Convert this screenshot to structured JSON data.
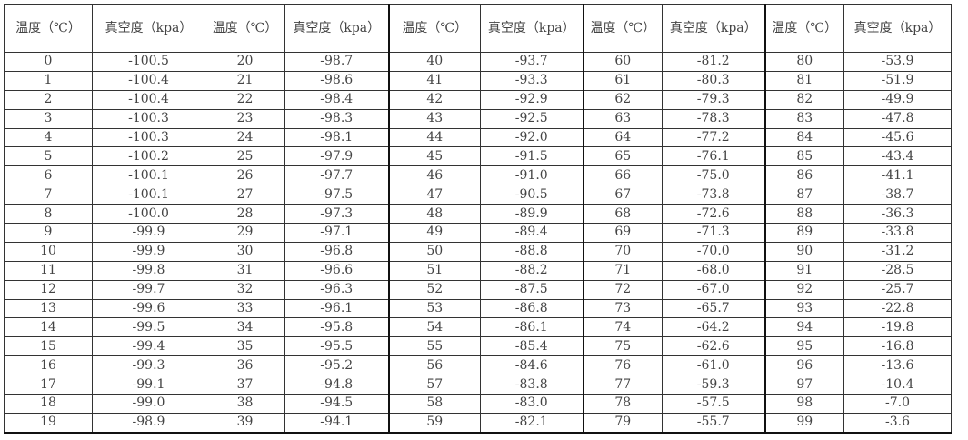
{
  "table": {
    "headers": [
      "温度（℃）",
      "真空度（kpa）",
      "温度（℃）",
      "真空度（kpa）",
      "温度（℃）",
      "真空度（kpa）",
      "温度（℃）",
      "真空度（kpa）",
      "温度（℃）",
      "真空度（kpa）"
    ],
    "rows": [
      [
        "0",
        "-100.5",
        "20",
        "-98.7",
        "40",
        "-93.7",
        "60",
        "-81.2",
        "80",
        "-53.9"
      ],
      [
        "1",
        "-100.4",
        "21",
        "-98.6",
        "41",
        "-93.3",
        "61",
        "-80.3",
        "81",
        "-51.9"
      ],
      [
        "2",
        "-100.4",
        "22",
        "-98.4",
        "42",
        "-92.9",
        "62",
        "-79.3",
        "82",
        "-49.9"
      ],
      [
        "3",
        "-100.3",
        "23",
        "-98.3",
        "43",
        "-92.5",
        "63",
        "-78.3",
        "83",
        "-47.8"
      ],
      [
        "4",
        "-100.3",
        "24",
        "-98.1",
        "44",
        "-92.0",
        "64",
        "-77.2",
        "84",
        "-45.6"
      ],
      [
        "5",
        "-100.2",
        "25",
        "-97.9",
        "45",
        "-91.5",
        "65",
        "-76.1",
        "85",
        "-43.4"
      ],
      [
        "6",
        "-100.1",
        "26",
        "-97.7",
        "46",
        "-91.0",
        "66",
        "-75.0",
        "86",
        "-41.1"
      ],
      [
        "7",
        "-100.1",
        "27",
        "-97.5",
        "47",
        "-90.5",
        "67",
        "-73.8",
        "87",
        "-38.7"
      ],
      [
        "8",
        "-100.0",
        "28",
        "-97.3",
        "48",
        "-89.9",
        "68",
        "-72.6",
        "88",
        "-36.3"
      ],
      [
        "9",
        "-99.9",
        "29",
        "-97.1",
        "49",
        "-89.4",
        "69",
        "-71.3",
        "89",
        "-33.8"
      ],
      [
        "10",
        "-99.9",
        "30",
        "-96.8",
        "50",
        "-88.8",
        "70",
        "-70.0",
        "90",
        "-31.2"
      ],
      [
        "11",
        "-99.8",
        "31",
        "-96.6",
        "51",
        "-88.2",
        "71",
        "-68.0",
        "91",
        "-28.5"
      ],
      [
        "12",
        "-99.7",
        "32",
        "-96.3",
        "52",
        "-87.5",
        "72",
        "-67.0",
        "92",
        "-25.7"
      ],
      [
        "13",
        "-99.6",
        "33",
        "-96.1",
        "53",
        "-86.8",
        "73",
        "-65.7",
        "93",
        "-22.8"
      ],
      [
        "14",
        "-99.5",
        "34",
        "-95.8",
        "54",
        "-86.1",
        "74",
        "-64.2",
        "94",
        "-19.8"
      ],
      [
        "15",
        "-99.4",
        "35",
        "-95.5",
        "55",
        "-85.4",
        "75",
        "-62.6",
        "95",
        "-16.8"
      ],
      [
        "16",
        "-99.3",
        "36",
        "-95.2",
        "56",
        "-84.6",
        "76",
        "-61.0",
        "96",
        "-13.6"
      ],
      [
        "17",
        "-99.1",
        "37",
        "-94.8",
        "57",
        "-83.8",
        "77",
        "-59.3",
        "97",
        "-10.4"
      ],
      [
        "18",
        "-99.0",
        "38",
        "-94.5",
        "58",
        "-83.0",
        "78",
        "-57.5",
        "98",
        "-7.0"
      ],
      [
        "19",
        "-98.9",
        "39",
        "-94.1",
        "59",
        "-82.1",
        "79",
        "-55.7",
        "99",
        "-3.6"
      ]
    ]
  }
}
